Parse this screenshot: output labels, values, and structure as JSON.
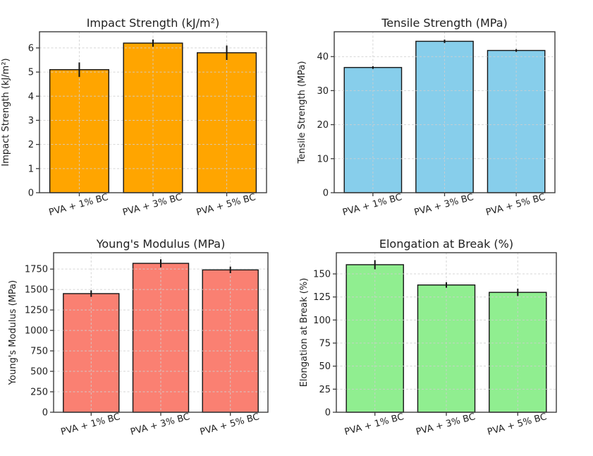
{
  "figure": {
    "background": "#ffffff",
    "text_color": "#1f1f1f",
    "spine_color": "#3d3d3d",
    "grid_color": "#cfcfcf",
    "bar_edge_color": "#141414",
    "error_bar_color": "#141414"
  },
  "chart_data": [
    {
      "id": "impact-strength",
      "type": "bar",
      "title": "Impact Strength (kJ/m²)",
      "ylabel": "Impact Strength (kJ/m²)",
      "xlabel": "",
      "categories": [
        "PVA + 1% BC",
        "PVA + 3% BC",
        "PVA + 5% BC"
      ],
      "values": [
        5.1,
        6.2,
        5.8
      ],
      "errors": [
        0.3,
        0.15,
        0.3
      ],
      "bar_color": "#FFA500",
      "ylim": [
        0,
        6.67
      ],
      "yticks": [
        0,
        1,
        2,
        3,
        4,
        5,
        6
      ],
      "grid": "dashed-both-axes-over-bars",
      "legend": "none",
      "xtick_rotation": 15
    },
    {
      "id": "tensile-strength",
      "type": "bar",
      "title": "Tensile Strength (MPa)",
      "ylabel": "Tensile Strength (MPa)",
      "xlabel": "",
      "categories": [
        "PVA + 1% BC",
        "PVA + 3% BC",
        "PVA + 5% BC"
      ],
      "values": [
        36.8,
        44.5,
        41.8
      ],
      "errors": [
        0.4,
        0.5,
        0.4
      ],
      "bar_color": "#87CEEB",
      "ylim": [
        0,
        47.3
      ],
      "yticks": [
        0,
        10,
        20,
        30,
        40
      ],
      "grid": "dashed-both-axes-over-bars",
      "legend": "none",
      "xtick_rotation": 15
    },
    {
      "id": "youngs-modulus",
      "type": "bar",
      "title": "Young's Modulus (MPa)",
      "ylabel": "Young's Modulus (MPa)",
      "xlabel": "",
      "categories": [
        "PVA + 1% BC",
        "PVA + 3% BC",
        "PVA + 5% BC"
      ],
      "values": [
        1450,
        1820,
        1740
      ],
      "errors": [
        40,
        50,
        40
      ],
      "bar_color": "#FA8072",
      "ylim": [
        0,
        1950
      ],
      "yticks": [
        0,
        250,
        500,
        750,
        1000,
        1250,
        1500,
        1750
      ],
      "grid": "dashed-both-axes-over-bars",
      "legend": "none",
      "xtick_rotation": 15
    },
    {
      "id": "elongation-at-break",
      "type": "bar",
      "title": "Elongation at Break (%)",
      "ylabel": "Elongation at Break (%)",
      "xlabel": "",
      "categories": [
        "PVA + 1% BC",
        "PVA + 3% BC",
        "PVA + 5% BC"
      ],
      "values": [
        160,
        138,
        130
      ],
      "errors": [
        5,
        3,
        4
      ],
      "bar_color": "#90EE90",
      "ylim": [
        0,
        173
      ],
      "yticks": [
        0,
        25,
        50,
        75,
        100,
        125,
        150
      ],
      "grid": "dashed-both-axes-over-bars",
      "legend": "none",
      "xtick_rotation": 15
    }
  ]
}
